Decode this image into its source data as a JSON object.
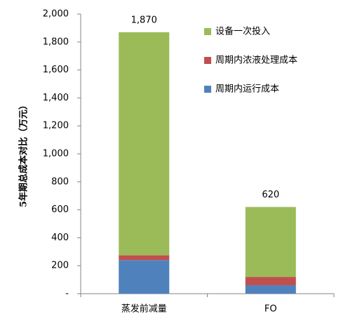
{
  "chart_data": {
    "type": "stacked-bar",
    "y_label": "5年期总成本对比（万元）",
    "categories": [
      "蒸发前减量",
      "FO"
    ],
    "series": [
      {
        "name": "周期内运行成本",
        "color": "#4f81bd",
        "values": [
          240,
          60
        ]
      },
      {
        "name": "周期内浓液处理成本",
        "color": "#c0504d",
        "values": [
          35,
          60
        ]
      },
      {
        "name": "设备一次投入",
        "color": "#9bbb59",
        "values": [
          1595,
          500
        ]
      }
    ],
    "totals": {
      "values": [
        1870,
        620
      ],
      "value_labels": [
        "1,870",
        "620"
      ]
    },
    "ylim": [
      0,
      2000
    ],
    "yticks": [
      {
        "value": 0,
        "label": "-"
      },
      200,
      400,
      600,
      800,
      {
        "value": 1000,
        "label": "1,000"
      },
      {
        "value": 1200,
        "label": "1,200"
      },
      {
        "value": 1400,
        "label": "1,400"
      },
      {
        "value": 1600,
        "label": "1,600"
      },
      {
        "value": 1800,
        "label": "1,800"
      },
      {
        "value": 2000,
        "label": "2,000"
      }
    ],
    "legend": "upper-right"
  }
}
